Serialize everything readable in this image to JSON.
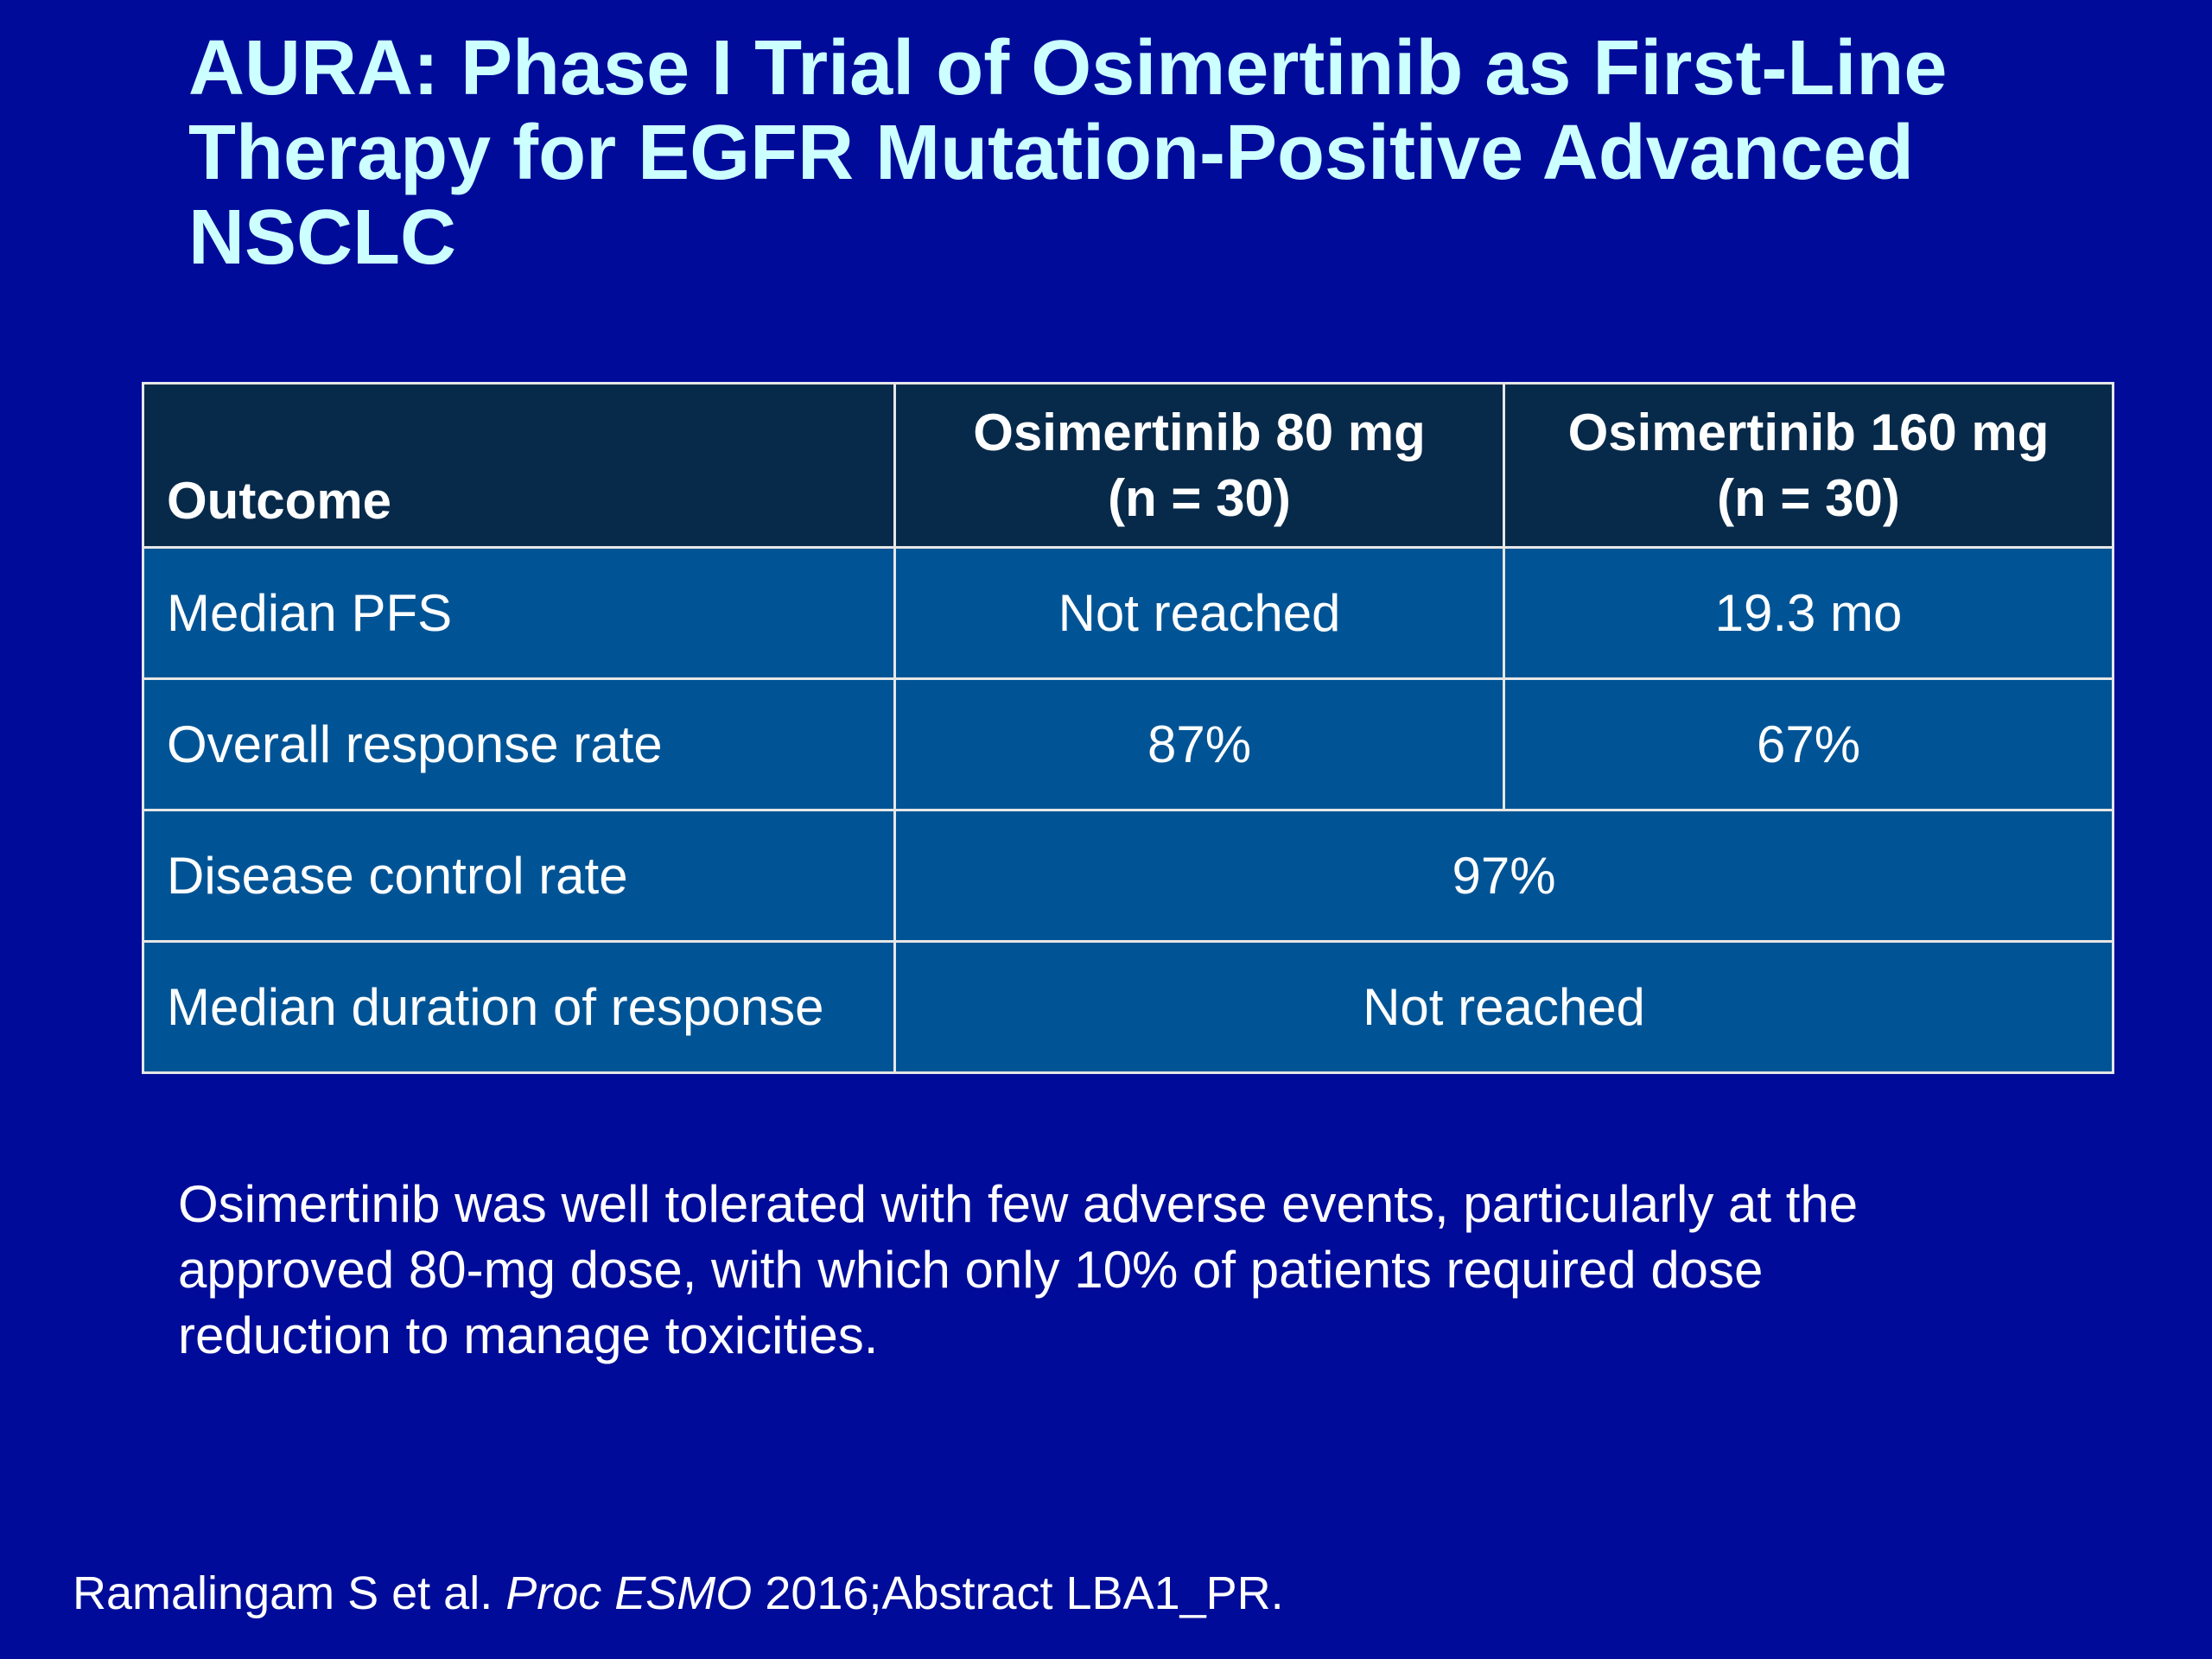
{
  "slide": {
    "title_lines": [
      "AURA: Phase I Trial of Osimertinib as First-Line",
      "Therapy for EGFR Mutation-Positive Advanced",
      "NSCLC"
    ],
    "table": {
      "headers": {
        "outcome": "Outcome",
        "arm1": [
          "Osimertinib 80 mg",
          "(n = 30)"
        ],
        "arm2": [
          "Osimertinib 160 mg",
          "(n = 30)"
        ]
      },
      "rows": [
        {
          "label": "Median PFS",
          "arm1": "Not reached",
          "arm2": "19.3 mo"
        },
        {
          "label": "Overall response rate",
          "arm1": "87%",
          "arm2": "67%"
        },
        {
          "label": "Disease control rate",
          "combined": "97%"
        },
        {
          "label": "Median duration of response",
          "combined": "Not reached"
        }
      ]
    },
    "note_lines": [
      "Osimertinib was well tolerated with few adverse events, particularly at the",
      "approved 80-mg dose, with which only 10% of patients required dose",
      "reduction to manage toxicities."
    ],
    "citation": {
      "authors": "Ramalingam S et al.",
      "journal": "Proc ESMO",
      "rest": "2016;Abstract LBA1_PR."
    }
  },
  "colors": {
    "background": "#000c99",
    "title": "#ccffff",
    "header_fill": "#082a4a",
    "cell_fill": "#005496",
    "border": "#e6e6e6"
  }
}
